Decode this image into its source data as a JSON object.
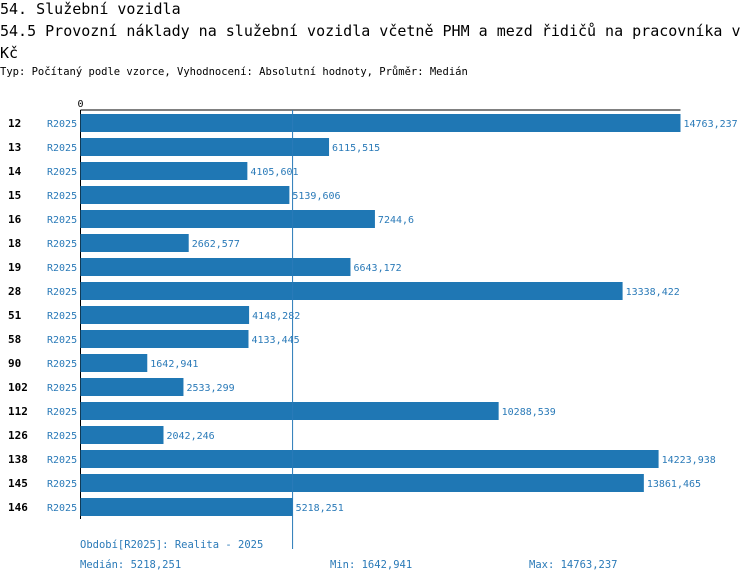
{
  "header": {
    "section_title": "54. Služební vozidla",
    "chart_title": "54.5 Provozní náklady na služební vozidla včetně PHM a mezd řidičů na pracovníka v Kč",
    "meta": "Typ: Počítaný podle vzorce, Vyhodnocení: Absolutní hodnoty, Průměr: Medián"
  },
  "colors": {
    "bar": "#1f77b4",
    "label_text": "#2a7ab8",
    "category_text": "#000000"
  },
  "chart_data": {
    "type": "bar",
    "orientation": "horizontal",
    "title": "54.5 Provozní náklady na služební vozidla včetně PHM a mezd řidičů na pracovníka v Kč",
    "categories": [
      "12",
      "13",
      "14",
      "15",
      "16",
      "18",
      "19",
      "28",
      "51",
      "58",
      "90",
      "102",
      "112",
      "126",
      "138",
      "145",
      "146"
    ],
    "period_labels": [
      "R2025",
      "R2025",
      "R2025",
      "R2025",
      "R2025",
      "R2025",
      "R2025",
      "R2025",
      "R2025",
      "R2025",
      "R2025",
      "R2025",
      "R2025",
      "R2025",
      "R2025",
      "R2025",
      "R2025"
    ],
    "values": [
      14763.237,
      6115.515,
      4105.601,
      5139.606,
      7244.6,
      2662.577,
      6643.172,
      13338.422,
      4148.282,
      4133.445,
      1642.941,
      2533.299,
      10288.539,
      2042.246,
      14223.938,
      13861.465,
      5218.251
    ],
    "value_labels": [
      "14763,237",
      "6115,515",
      "4105,601",
      "5139,606",
      "7244,6",
      "2662,577",
      "6643,172",
      "13338,422",
      "4148,282",
      "4133,445",
      "1642,941",
      "2533,299",
      "10288,539",
      "2042,246",
      "14223,938",
      "13861,465",
      "5218,251"
    ],
    "axis_zero_label": "0",
    "xlim": [
      0,
      14763.237
    ],
    "median": 5218.251,
    "xlabel": "",
    "ylabel": ""
  },
  "footer": {
    "period": "Období[R2025]: Realita - 2025",
    "median": "Medián: 5218,251",
    "min": "Min: 1642,941",
    "max": "Max: 14763,237"
  }
}
